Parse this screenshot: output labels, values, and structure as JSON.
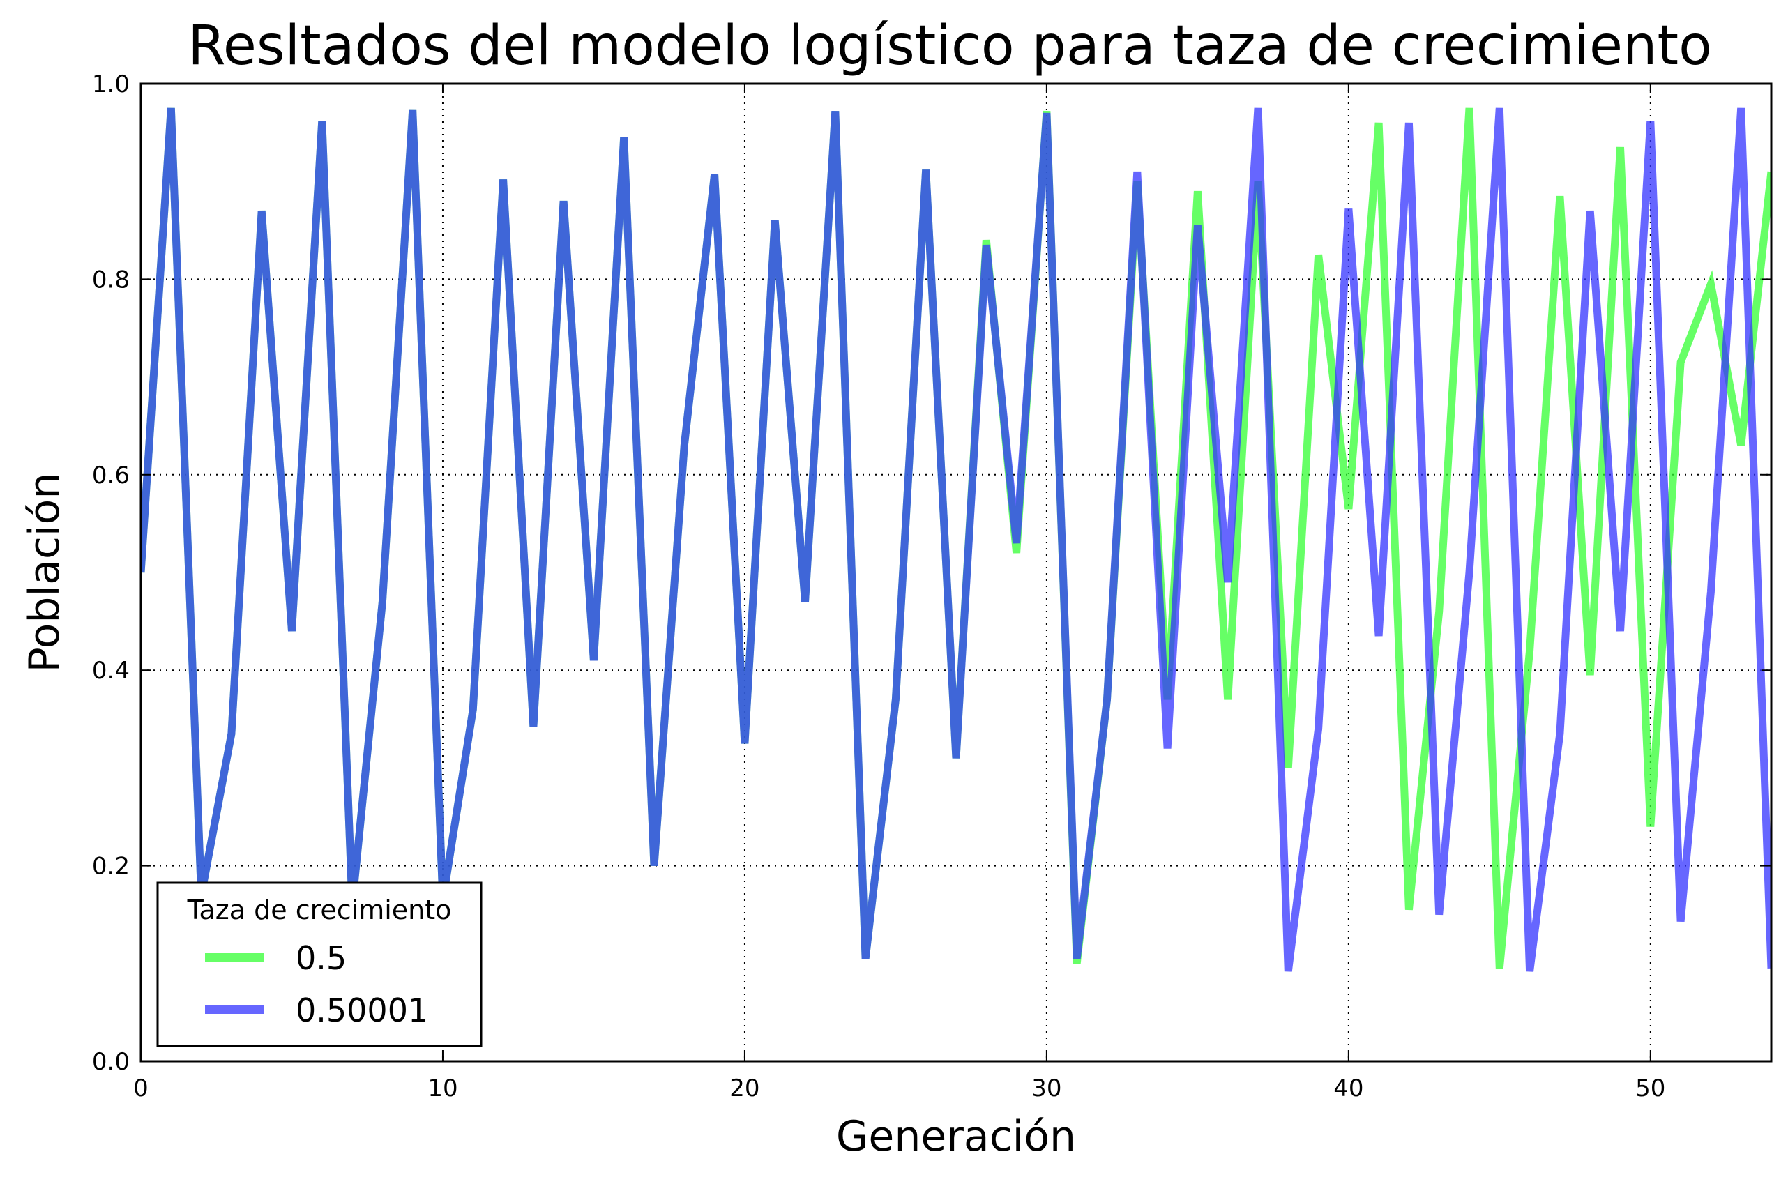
{
  "chart_data": {
    "type": "line",
    "title": "Resltados del modelo logístico para taza de crecimiento",
    "xlabel": "Generación",
    "ylabel": "Población",
    "xlim": [
      0,
      54
    ],
    "ylim": [
      0,
      1.0
    ],
    "xticks": [
      "0",
      "10",
      "20",
      "30",
      "40",
      "50"
    ],
    "yticks": [
      "0.0",
      "0.2",
      "0.4",
      "0.6",
      "0.8",
      "1.0"
    ],
    "grid": true,
    "legend": {
      "title": "Taza de crecimiento",
      "placement": "lower-left"
    },
    "series": [
      {
        "name": "0.5",
        "color": "#33ff33",
        "x": [
          0,
          1,
          2,
          3,
          4,
          5,
          6,
          7,
          8,
          9,
          10,
          11,
          12,
          13,
          14,
          15,
          16,
          17,
          18,
          19,
          20,
          21,
          22,
          23,
          24,
          25,
          26,
          27,
          28,
          29,
          30,
          31,
          32,
          33,
          34,
          35,
          36,
          37,
          38,
          39,
          40,
          41,
          42,
          43,
          44,
          45,
          46,
          47,
          48,
          49,
          50,
          51,
          52,
          53,
          54
        ],
        "values": [
          0.5,
          0.975,
          0.17,
          0.335,
          0.87,
          0.44,
          0.962,
          0.16,
          0.47,
          0.973,
          0.165,
          0.36,
          0.902,
          0.342,
          0.88,
          0.41,
          0.945,
          0.2,
          0.63,
          0.907,
          0.325,
          0.86,
          0.47,
          0.972,
          0.105,
          0.37,
          0.912,
          0.31,
          0.84,
          0.52,
          0.972,
          0.1,
          0.37,
          0.9,
          0.37,
          0.89,
          0.37,
          0.9,
          0.3,
          0.825,
          0.565,
          0.96,
          0.155,
          0.46,
          0.975,
          0.095,
          0.42,
          0.885,
          0.395,
          0.935,
          0.24,
          0.715,
          0.795,
          0.63,
          0.91
        ]
      },
      {
        "name": "0.50001",
        "color": "#3333ff",
        "x": [
          0,
          1,
          2,
          3,
          4,
          5,
          6,
          7,
          8,
          9,
          10,
          11,
          12,
          13,
          14,
          15,
          16,
          17,
          18,
          19,
          20,
          21,
          22,
          23,
          24,
          25,
          26,
          27,
          28,
          29,
          30,
          31,
          32,
          33,
          34,
          35,
          36,
          37,
          38,
          39,
          40,
          41,
          42,
          43,
          44,
          45,
          46,
          47,
          48,
          49,
          50,
          51,
          52,
          53,
          54
        ],
        "values": [
          0.5,
          0.975,
          0.17,
          0.335,
          0.87,
          0.44,
          0.962,
          0.16,
          0.47,
          0.973,
          0.165,
          0.36,
          0.902,
          0.342,
          0.88,
          0.41,
          0.945,
          0.2,
          0.63,
          0.907,
          0.325,
          0.86,
          0.47,
          0.972,
          0.105,
          0.37,
          0.912,
          0.31,
          0.835,
          0.53,
          0.97,
          0.105,
          0.37,
          0.91,
          0.32,
          0.855,
          0.49,
          0.975,
          0.092,
          0.34,
          0.872,
          0.435,
          0.96,
          0.15,
          0.5,
          0.975,
          0.092,
          0.335,
          0.87,
          0.44,
          0.962,
          0.143,
          0.48,
          0.975,
          0.095
        ]
      }
    ]
  }
}
